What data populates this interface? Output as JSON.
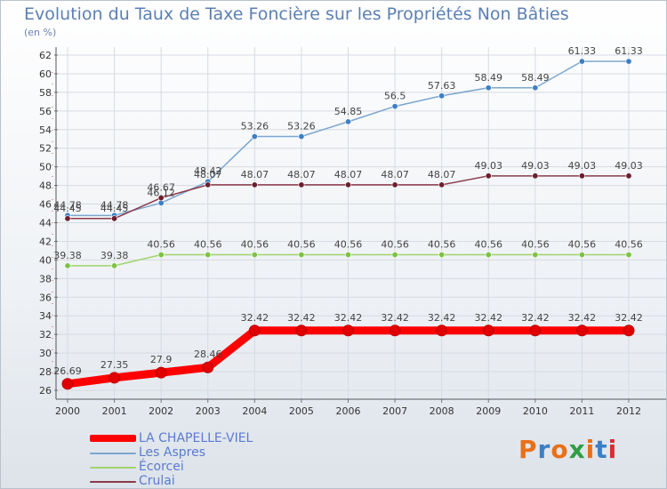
{
  "header": {
    "title": "Evolution du Taux de Taxe Foncière sur les Propriétés Non Bâties",
    "unit": "(en %)"
  },
  "logo": {
    "text": "Proxiti",
    "colors": [
      "#e8701a",
      "#3d7fc4",
      "#e8701a",
      "#2f9e44",
      "#e8701a",
      "#3d7fc4",
      "#d62f2f"
    ]
  },
  "chart_data": {
    "type": "line",
    "title": "Evolution du Taux de Taxe Foncière sur les Propriétés Non Bâties",
    "ylabel": "(en %)",
    "xlabel": "",
    "ylim": [
      26,
      62
    ],
    "yticks": [
      26,
      28,
      30,
      32,
      34,
      36,
      38,
      40,
      42,
      44,
      46,
      48,
      50,
      52,
      54,
      56,
      58,
      60,
      62
    ],
    "categories": [
      "2000",
      "2001",
      "2002",
      "2003",
      "2004",
      "2005",
      "2006",
      "2007",
      "2008",
      "2009",
      "2010",
      "2011",
      "2012"
    ],
    "grid": true,
    "legend_position": "bottom-left",
    "series": [
      {
        "name": "Les Aspres",
        "color": "#7ba6cf",
        "marker": "#3d7fc4",
        "values": [
          44.78,
          44.78,
          46.12,
          48.42,
          53.26,
          53.26,
          54.85,
          56.5,
          57.63,
          58.49,
          58.49,
          61.33,
          61.33
        ],
        "labels": [
          "44.78",
          "44.78",
          "46.12",
          "48.42",
          "53.26",
          "53.26",
          "54.85",
          "56.5",
          "57.63",
          "58.49",
          "58.49",
          "61.33",
          "61.33"
        ]
      },
      {
        "name": "Écorcei",
        "color": "#9fd46a",
        "marker": "#7cc243",
        "values": [
          39.38,
          39.38,
          40.56,
          40.56,
          40.56,
          40.56,
          40.56,
          40.56,
          40.56,
          40.56,
          40.56,
          40.56,
          40.56
        ],
        "labels": [
          "39.38",
          "39.38",
          "40.56",
          "40.56",
          "40.56",
          "40.56",
          "40.56",
          "40.56",
          "40.56",
          "40.56",
          "40.56",
          "40.56",
          "40.56"
        ]
      },
      {
        "name": "Crulai",
        "color": "#8b3a4a",
        "marker": "#6b1f2e",
        "values": [
          44.45,
          44.45,
          46.67,
          48.07,
          48.07,
          48.07,
          48.07,
          48.07,
          48.07,
          49.03,
          49.03,
          49.03,
          49.03
        ],
        "labels": [
          "44.45",
          "44.45",
          "46.67",
          "48.07",
          "48.07",
          "48.07",
          "48.07",
          "48.07",
          "48.07",
          "49.03",
          "49.03",
          "49.03",
          "49.03"
        ]
      },
      {
        "name": "LA CHAPELLE-VIEL",
        "color": "#ff0000",
        "marker": "#e00000",
        "values": [
          26.69,
          27.35,
          27.9,
          28.46,
          32.42,
          32.42,
          32.42,
          32.42,
          32.42,
          32.42,
          32.42,
          32.42,
          32.42
        ],
        "labels": [
          "26.69",
          "27.35",
          "27.9",
          "28.46",
          "32.42",
          "32.42",
          "32.42",
          "32.42",
          "32.42",
          "32.42",
          "32.42",
          "32.42",
          "32.42"
        ]
      }
    ]
  },
  "legend": {
    "items": [
      {
        "label": "LA CHAPELLE-VIEL",
        "color": "#ff0000",
        "thick": true
      },
      {
        "label": "Les Aspres",
        "color": "#7ba6cf",
        "thick": false
      },
      {
        "label": "Écorcei",
        "color": "#9fd46a",
        "thick": false
      },
      {
        "label": "Crulai",
        "color": "#8b3a4a",
        "thick": false
      }
    ]
  }
}
